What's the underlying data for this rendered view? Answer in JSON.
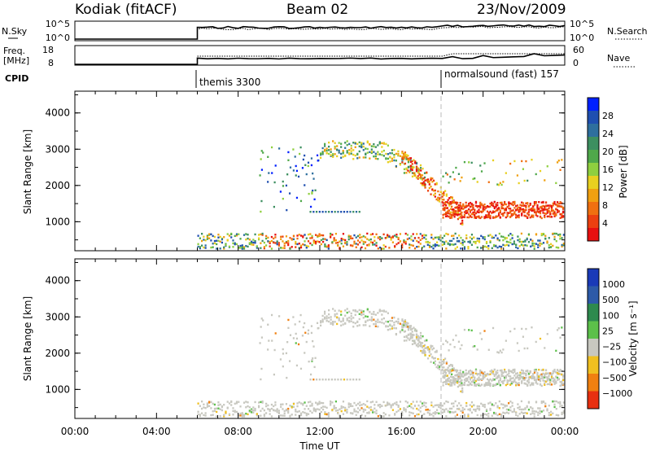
{
  "header": {
    "station": "Kodiak (fitACF)",
    "beam": "Beam 02",
    "date": "23/Nov/2009"
  },
  "panels": {
    "nsky": {
      "left_label": "N.Sky",
      "ticks_left": [
        "10^5",
        "10^0"
      ],
      "ticks_right": [
        "10^5",
        "10^0"
      ],
      "right_label": "N.Search"
    },
    "freq": {
      "left_label_1": "Freq.",
      "left_label_2": "[MHz]",
      "ticks_left": [
        "18",
        "8"
      ],
      "ticks_right": [
        "60",
        "0"
      ],
      "right_label": "Nave"
    },
    "cpid": {
      "label": "CPID",
      "modes": [
        "themis 3300",
        "normalsound (fast) 157"
      ]
    }
  },
  "chart_data": [
    {
      "type": "heatmap",
      "name": "power",
      "ylabel": "Slant Range [km]",
      "yticks": [
        "4000",
        "3000",
        "2000",
        "1000"
      ],
      "ylim": [
        200,
        4600
      ],
      "colorbar_label": "Power [dB]",
      "colorbar_ticks": [
        "28",
        "24",
        "20",
        "16",
        "12",
        "8",
        "4"
      ],
      "colors": [
        "#0020ff",
        "#1f4fb0",
        "#2e6f9e",
        "#3d8f60",
        "#4fa84a",
        "#8fcf3f",
        "#e8d020",
        "#f0a010",
        "#f07010",
        "#ec4010",
        "#e81010"
      ]
    },
    {
      "type": "heatmap",
      "name": "velocity",
      "ylabel": "Slant Range [km]",
      "yticks": [
        "4000",
        "3000",
        "2000",
        "1000"
      ],
      "ylim": [
        200,
        4600
      ],
      "colorbar_label": "Velocity [m s⁻¹]",
      "colorbar_ticks": [
        "1000",
        "500",
        "100",
        "25",
        "−25",
        "−100",
        "−500",
        "−1000"
      ],
      "colors": [
        "#1a3ab8",
        "#2d5aa8",
        "#2e8a4e",
        "#5cc04a",
        "#c8c8c0",
        "#f0c020",
        "#f08010",
        "#e83010"
      ]
    }
  ],
  "xaxis": {
    "label": "Time UT",
    "ticks": [
      "00:00",
      "04:00",
      "08:00",
      "12:00",
      "16:00",
      "20:00",
      "00:00"
    ]
  }
}
